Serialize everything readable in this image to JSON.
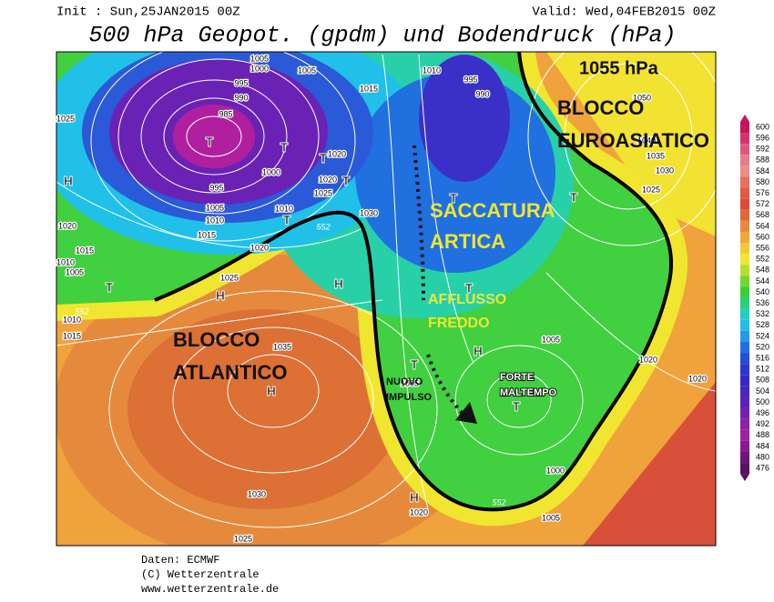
{
  "header": {
    "init": "Init : Sun,25JAN2015 00Z",
    "valid": "Valid: Wed,04FEB2015 00Z",
    "title": "500 hPa Geopot. (gpdm) und Bodendruck (hPa)"
  },
  "map": {
    "annotations": [
      {
        "lines": [
          "1055 hPa"
        ]
      },
      {
        "lines": [
          "BLOCCO",
          "EUROASIATICO"
        ]
      },
      {
        "lines": [
          "SACCATURA",
          "ARTICA"
        ]
      },
      {
        "lines": [
          "AFFLUSSO",
          "FREDDO"
        ]
      },
      {
        "lines": [
          "BLOCCO",
          "ATLANTICO"
        ]
      },
      {
        "lines": [
          "NUOVO",
          "IMPULSO"
        ]
      },
      {
        "lines": [
          "FORTE",
          "MALTEMPO"
        ]
      }
    ],
    "isobar_labels": [
      1005,
      1000,
      995,
      990,
      985,
      1005,
      995,
      990,
      1010,
      1015,
      1025,
      995,
      1005,
      1010,
      1015,
      1020,
      1015,
      1010,
      1005,
      1000,
      1020,
      1020,
      1025,
      1010,
      1030,
      1020,
      1025,
      1010,
      1015,
      1035,
      1005,
      1005,
      1000,
      1005,
      1020,
      1030,
      1025,
      1050,
      1040,
      1035,
      1030,
      1025,
      1020,
      1020
    ],
    "contour_labels": [
      552,
      552,
      552
    ],
    "centers": [
      "H",
      "T",
      "T",
      "T",
      "T",
      "T",
      "H",
      "T",
      "H",
      "H",
      "T",
      "T",
      "T",
      "H",
      "T",
      "T",
      "H"
    ]
  },
  "legend": {
    "ticks": [
      600,
      596,
      592,
      588,
      584,
      580,
      576,
      572,
      568,
      564,
      560,
      556,
      552,
      548,
      544,
      540,
      536,
      532,
      528,
      524,
      520,
      516,
      512,
      508,
      504,
      500,
      496,
      492,
      488,
      484,
      480,
      476
    ],
    "colors": [
      "#c8145c",
      "#d8306c",
      "#e0587e",
      "#e87c8c",
      "#ec8c84",
      "#e8705c",
      "#e25a44",
      "#dc4a38",
      "#e06838",
      "#e88a3c",
      "#f0a83c",
      "#f4c838",
      "#f0e630",
      "#b4e02c",
      "#70d830",
      "#3ccc38",
      "#28d080",
      "#20d0c0",
      "#20c0e8",
      "#2898e8",
      "#2070e0",
      "#2050d8",
      "#2838d0",
      "#3428c8",
      "#4824c0",
      "#5c20b8",
      "#7420b0",
      "#8c20a8",
      "#a020a0",
      "#8c1890",
      "#701478",
      "#581060"
    ]
  },
  "footer": [
    "Daten: ECMWF",
    "(C) Wetterzentrale",
    "www.wetterzentrale.de"
  ]
}
